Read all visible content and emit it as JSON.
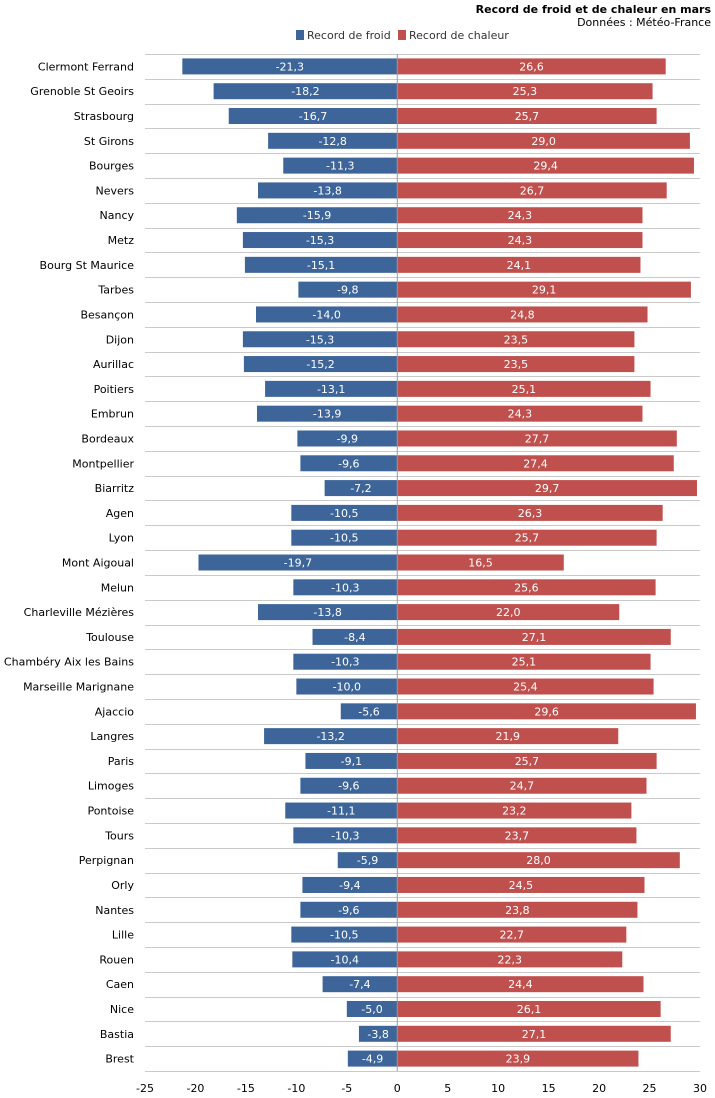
{
  "chart_data": {
    "type": "bar",
    "orientation": "horizontal",
    "title": "Record de froid et de chaleur en mars",
    "subtitle": "Données : Météo-France",
    "legend_position": "top-right",
    "xlim": [
      -25,
      30
    ],
    "x_ticks": [
      -25,
      -20,
      -15,
      -10,
      -5,
      0,
      5,
      10,
      15,
      20,
      25,
      30
    ],
    "grid": true,
    "colors": {
      "cold": "#3d6599",
      "hot": "#c0504d",
      "grid": "#c9c9c9",
      "zero": "#9a9a9a"
    },
    "categories": [
      "Clermont Ferrand",
      "Grenoble St Geoirs",
      "Strasbourg",
      "St Girons",
      "Bourges",
      "Nevers",
      "Nancy",
      "Metz",
      "Bourg St Maurice",
      "Tarbes",
      "Besançon",
      "Dijon",
      "Aurillac",
      "Poitiers",
      "Embrun",
      "Bordeaux",
      "Montpellier",
      "Biarritz",
      "Agen",
      "Lyon",
      "Mont Aigoual",
      "Melun",
      "Charleville Mézières",
      "Toulouse",
      "Chambéry Aix les Bains",
      "Marseille Marignane",
      "Ajaccio",
      "Langres",
      "Paris",
      "Limoges",
      "Pontoise",
      "Tours",
      "Perpignan",
      "Orly",
      "Nantes",
      "Lille",
      "Rouen",
      "Caen",
      "Nice",
      "Bastia",
      "Brest"
    ],
    "series": [
      {
        "name": "Record de froid",
        "color": "#3d6599",
        "values": [
          -21.3,
          -18.2,
          -16.7,
          -12.8,
          -11.3,
          -13.8,
          -15.9,
          -15.3,
          -15.1,
          -9.8,
          -14.0,
          -15.3,
          -15.2,
          -13.1,
          -13.9,
          -9.9,
          -9.6,
          -7.2,
          -10.5,
          -10.5,
          -19.7,
          -10.3,
          -13.8,
          -8.4,
          -10.3,
          -10.0,
          -5.6,
          -13.2,
          -9.1,
          -9.6,
          -11.1,
          -10.3,
          -5.9,
          -9.4,
          -9.6,
          -10.5,
          -10.4,
          -7.4,
          -5.0,
          -3.8,
          -4.9
        ]
      },
      {
        "name": "Record de chaleur",
        "color": "#c0504d",
        "values": [
          26.6,
          25.3,
          25.7,
          29.0,
          29.4,
          26.7,
          24.3,
          24.3,
          24.1,
          29.1,
          24.8,
          23.5,
          23.5,
          25.1,
          24.3,
          27.7,
          27.4,
          29.7,
          26.3,
          25.7,
          16.5,
          25.6,
          22.0,
          27.1,
          25.1,
          25.4,
          29.6,
          21.9,
          25.7,
          24.7,
          23.2,
          23.7,
          28.0,
          24.5,
          23.8,
          22.7,
          22.3,
          24.4,
          26.1,
          27.1,
          23.9
        ]
      }
    ]
  }
}
